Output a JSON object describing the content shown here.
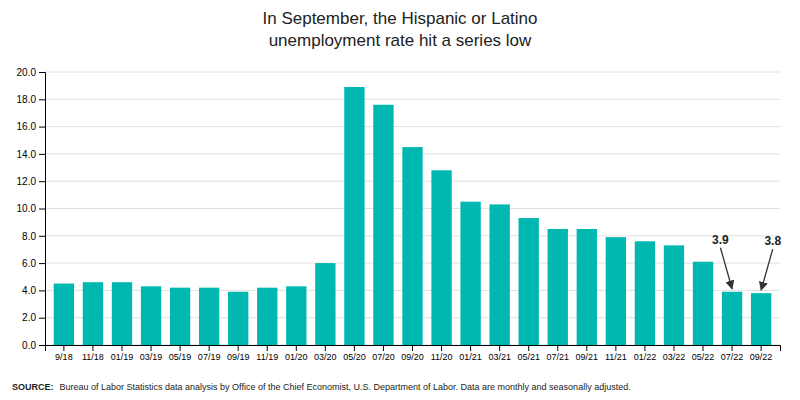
{
  "chart_data": {
    "type": "bar",
    "title": "In September, the Hispanic or Latino\nunemployment rate hit a series low",
    "categories": [
      "9/18",
      "11/18",
      "01/19",
      "03/19",
      "05/19",
      "07/19",
      "09/19",
      "11/19",
      "01/20",
      "03/20",
      "05/20",
      "07/20",
      "09/20",
      "11/20",
      "01/21",
      "03/21",
      "05/21",
      "07/21",
      "09/21",
      "11/21",
      "01/22",
      "03/22",
      "05/22",
      "07/22",
      "09/22"
    ],
    "values": [
      4.5,
      4.6,
      4.6,
      4.3,
      4.2,
      4.2,
      3.9,
      4.2,
      4.3,
      6.0,
      18.9,
      17.6,
      14.5,
      12.8,
      10.5,
      10.3,
      9.3,
      8.5,
      8.5,
      7.9,
      7.6,
      7.3,
      6.1,
      3.9,
      3.8
    ],
    "color": "#00b8b0",
    "ylim": [
      0,
      20
    ],
    "yticks": [
      {
        "value": 0,
        "label": "0.0"
      },
      {
        "value": 2,
        "label": "2.0"
      },
      {
        "value": 4,
        "label": "4.0"
      },
      {
        "value": 6,
        "label": "6.0"
      },
      {
        "value": 8,
        "label": "8.0"
      },
      {
        "value": 10,
        "label": "10.0"
      },
      {
        "value": 12,
        "label": "12.0"
      },
      {
        "value": 14,
        "label": "14.0"
      },
      {
        "value": 16,
        "label": "16.0"
      },
      {
        "value": 18,
        "label": "18.0"
      },
      {
        "value": 20,
        "label": "20.0"
      }
    ],
    "grid": true,
    "annotations": [
      {
        "text": "3.9",
        "category": "07/22"
      },
      {
        "text": "3.8",
        "category": "09/22"
      }
    ],
    "source": "SOURCE:",
    "note": "Bureau of Labor Statistics data analysis by Office of the Chief Economist, U.S. Department of Labor. Data are monthly and seasonally adjusted."
  }
}
